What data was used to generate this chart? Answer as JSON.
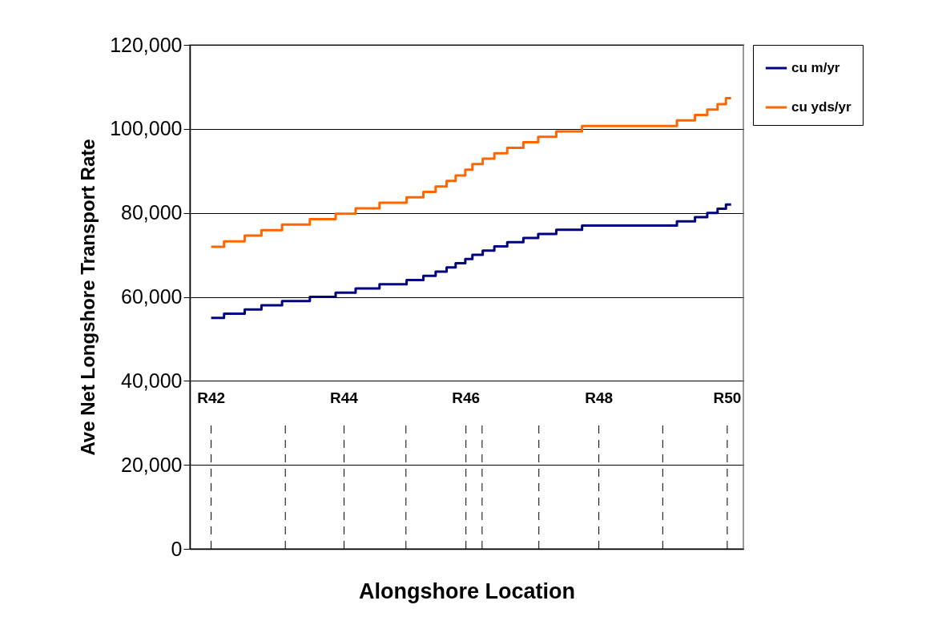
{
  "chart_data": {
    "type": "step",
    "xlabel": "Alongshore Location",
    "ylabel": "Ave Net Longshore Transport Rate",
    "x": [
      42,
      42.2,
      42.52,
      42.78,
      43.1,
      43.53,
      43.93,
      44.24,
      44.61,
      45.03,
      45.29,
      45.48,
      45.65,
      45.79,
      45.94,
      46.05,
      46.21,
      46.39,
      46.59,
      46.84,
      47.07,
      47.35,
      47.75,
      49.22,
      49.5,
      49.69,
      49.85,
      49.98,
      50.06
    ],
    "series": [
      {
        "name": "cu m/yr",
        "color": "#000080",
        "values": [
          55000,
          56000,
          57000,
          58000,
          59000,
          60000,
          61000,
          62000,
          63000,
          64000,
          65000,
          66000,
          67000,
          68000,
          69000,
          70000,
          71000,
          72000,
          73000,
          74000,
          75000,
          76000,
          77000,
          78000,
          79000,
          80000,
          81000,
          82000,
          82000
        ]
      },
      {
        "name": "cu yds/yr",
        "color": "#ff6600",
        "values": [
          71900,
          73200,
          74600,
          75900,
          77200,
          78500,
          79800,
          81100,
          82400,
          83700,
          85000,
          86300,
          87600,
          88900,
          90300,
          91600,
          92900,
          94200,
          95500,
          96800,
          98100,
          99400,
          100700,
          102000,
          103300,
          104600,
          105900,
          107300,
          107300
        ]
      }
    ],
    "xlim": [
      41.67,
      50.25
    ],
    "ylim": [
      0,
      120000
    ],
    "yticks": [
      0,
      {
        "value": 20000,
        "label": "20,000"
      },
      {
        "value": 40000,
        "label": "40,000"
      },
      {
        "value": 60000,
        "label": "60,000"
      },
      {
        "value": 80000,
        "label": "80,000"
      },
      {
        "value": 100000,
        "label": "100,000"
      },
      {
        "value": 120000,
        "label": "120,000"
      }
    ],
    "tick_labels": "y",
    "grid": "y",
    "legend": "right",
    "marker": "none",
    "line_style": "solid",
    "ref_lines": [
      {
        "axis": "x",
        "value": 42,
        "label": "R42",
        "line_style": "dashed"
      },
      {
        "axis": "x",
        "value": 43.15,
        "label": null,
        "line_style": "dashed"
      },
      {
        "axis": "x",
        "value": 44.06,
        "label": "R44",
        "line_style": "dashed"
      },
      {
        "axis": "x",
        "value": 45.02,
        "label": null,
        "line_style": "dashed"
      },
      {
        "axis": "x",
        "value": 45.95,
        "label": "R46",
        "line_style": "dashed"
      },
      {
        "axis": "x",
        "value": 46.2,
        "label": null,
        "line_style": "dashed"
      },
      {
        "axis": "x",
        "value": 47.08,
        "label": null,
        "line_style": "dashed"
      },
      {
        "axis": "x",
        "value": 48.01,
        "label": "R48",
        "line_style": "dashed"
      },
      {
        "axis": "x",
        "value": 49.0,
        "label": null,
        "line_style": "dashed"
      },
      {
        "axis": "x",
        "value": 50,
        "label": "R50",
        "line_style": "dashed"
      }
    ]
  }
}
